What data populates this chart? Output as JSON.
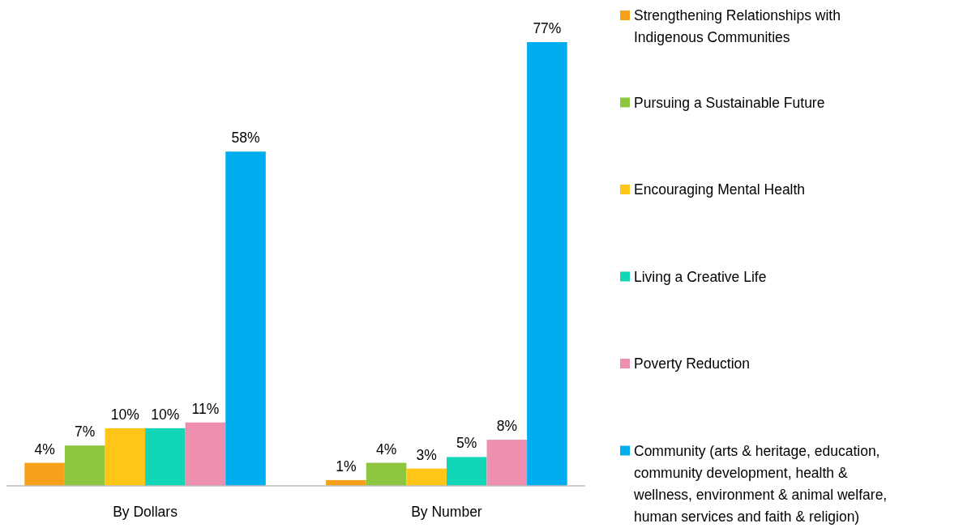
{
  "chart_data": {
    "type": "bar",
    "categories": [
      "By Dollars",
      "By Number"
    ],
    "series": [
      {
        "name": "Strengthening Relationships with Indigenous Communities",
        "color": "#f7a01b",
        "values": [
          4,
          1
        ],
        "value_labels": [
          "4%",
          "1%"
        ]
      },
      {
        "name": "Pursuing a Sustainable Future",
        "color": "#8dc63f",
        "values": [
          7,
          4
        ],
        "value_labels": [
          "7%",
          "4%"
        ]
      },
      {
        "name": "Encouraging Mental Health",
        "color": "#ffc519",
        "values": [
          10,
          3
        ],
        "value_labels": [
          "10%",
          "3%"
        ]
      },
      {
        "name": "Living a Creative Life",
        "color": "#12d6b8",
        "values": [
          10,
          5
        ],
        "value_labels": [
          "10%",
          "5%"
        ]
      },
      {
        "name": "Poverty Reduction",
        "color": "#ef8fb0",
        "values": [
          11,
          8
        ],
        "value_labels": [
          "11%",
          "8%"
        ]
      },
      {
        "name": "Community (arts & heritage, education, community development, health & wellness, environment & animal welfare, human services and faith & religion)",
        "color": "#00aeef",
        "values": [
          58,
          77
        ],
        "value_labels": [
          "58%",
          "77%"
        ]
      }
    ],
    "legend": "right"
  }
}
